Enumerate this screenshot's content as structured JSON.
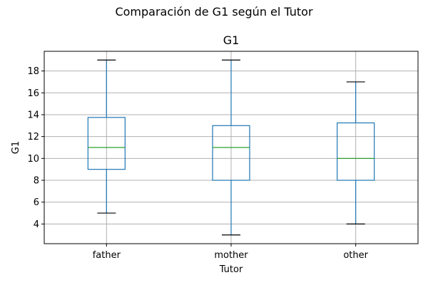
{
  "chart_data": {
    "type": "boxplot",
    "suptitle": "Comparación de G1 según el Tutor",
    "title": "G1",
    "xlabel": "Tutor",
    "ylabel": "G1",
    "ylim": [
      2.2,
      19.8
    ],
    "yticks": [
      4,
      6,
      8,
      10,
      12,
      14,
      16,
      18
    ],
    "grid": true,
    "categories": [
      "father",
      "mother",
      "other"
    ],
    "boxes": [
      {
        "category": "father",
        "whislo": 5,
        "q1": 9,
        "median": 11,
        "q3": 13.75,
        "whishi": 19
      },
      {
        "category": "mother",
        "whislo": 3,
        "q1": 8,
        "median": 11,
        "q3": 13,
        "whishi": 19
      },
      {
        "category": "other",
        "whislo": 4,
        "q1": 8,
        "median": 10,
        "q3": 13.25,
        "whishi": 17
      }
    ],
    "colors": {
      "box": "#1f77b4",
      "median": "#2ca02c",
      "cap": "#000000",
      "grid": "#b0b0b0"
    }
  }
}
